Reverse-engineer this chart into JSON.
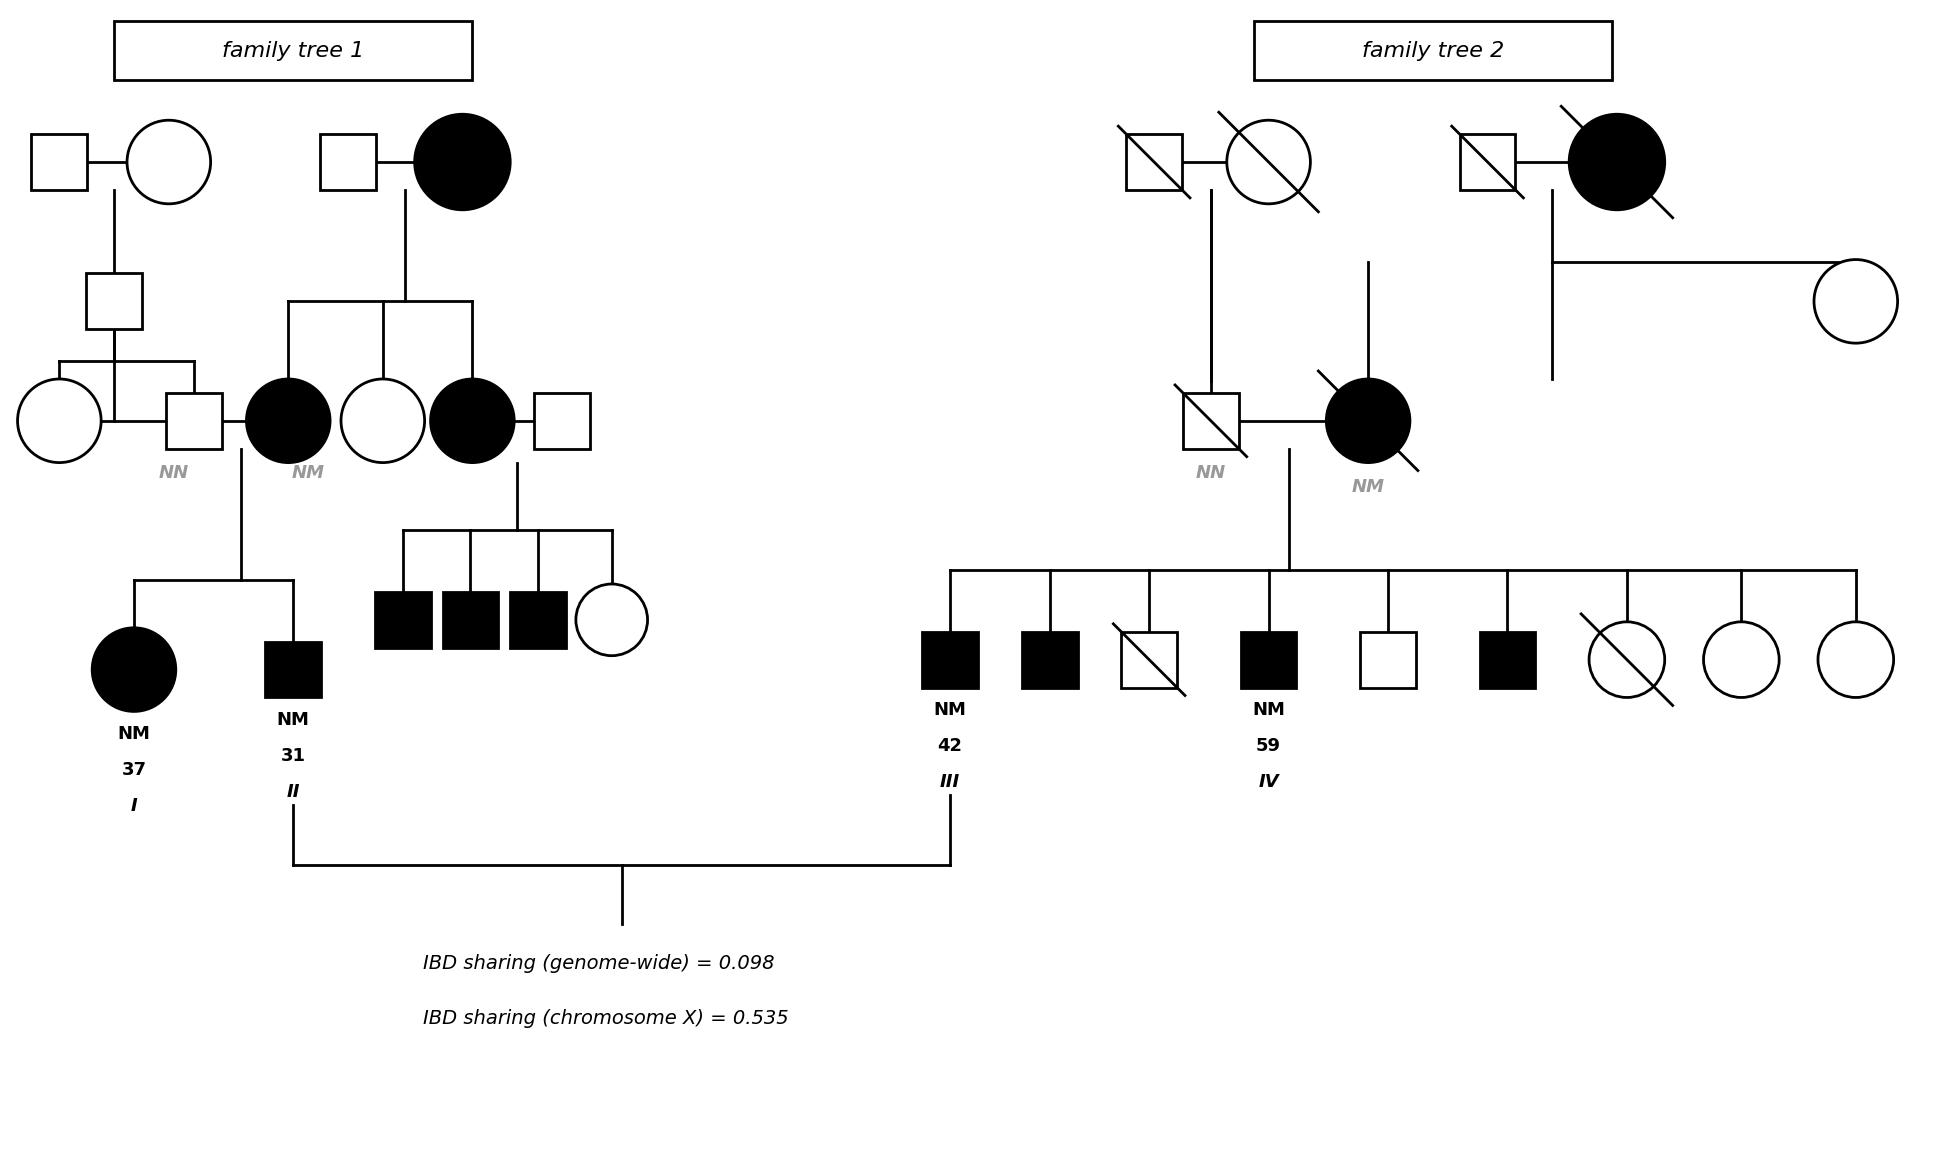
{
  "fig_width": 19.47,
  "fig_height": 11.74,
  "bg_color": "#ffffff",
  "label_color": "#999999",
  "title1": "family tree 1",
  "title2": "family tree 2",
  "ibd_genome": "IBD sharing (genome-wide) = 0.098",
  "ibd_chrX": "IBD sharing (chromosome X) = 0.535",
  "roman_I": "I",
  "roman_II": "II",
  "roman_III": "III",
  "roman_IV": "IV",
  "num_37": "37",
  "num_31": "31",
  "num_42": "42",
  "num_59": "59",
  "NM": "NM",
  "NN": "NN"
}
